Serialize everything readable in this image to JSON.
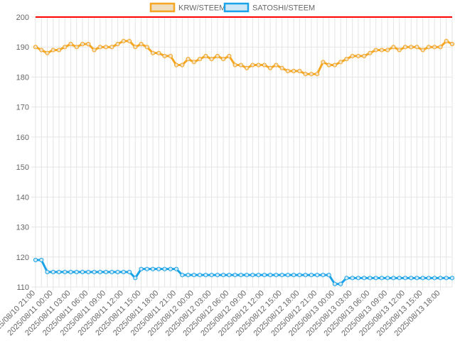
{
  "chart_data": {
    "type": "line",
    "legend_position": "top-center",
    "grid": true,
    "ylim": [
      110,
      200
    ],
    "yticks": [
      110,
      120,
      130,
      140,
      150,
      160,
      170,
      180,
      190,
      200
    ],
    "reference_line": {
      "value": 200,
      "color": "#ff0000"
    },
    "x": [
      "2025/08/10 21:00",
      "2025/08/10 22:00",
      "2025/08/10 23:00",
      "2025/08/11 00:00",
      "2025/08/11 01:00",
      "2025/08/11 02:00",
      "2025/08/11 03:00",
      "2025/08/11 04:00",
      "2025/08/11 05:00",
      "2025/08/11 06:00",
      "2025/08/11 07:00",
      "2025/08/11 08:00",
      "2025/08/11 09:00",
      "2025/08/11 10:00",
      "2025/08/11 11:00",
      "2025/08/11 12:00",
      "2025/08/11 13:00",
      "2025/08/11 14:00",
      "2025/08/11 15:00",
      "2025/08/11 16:00",
      "2025/08/11 17:00",
      "2025/08/11 18:00",
      "2025/08/11 19:00",
      "2025/08/11 20:00",
      "2025/08/11 21:00",
      "2025/08/11 22:00",
      "2025/08/11 23:00",
      "2025/08/12 00:00",
      "2025/08/12 01:00",
      "2025/08/12 02:00",
      "2025/08/12 03:00",
      "2025/08/12 04:00",
      "2025/08/12 05:00",
      "2025/08/12 06:00",
      "2025/08/12 07:00",
      "2025/08/12 08:00",
      "2025/08/12 09:00",
      "2025/08/12 10:00",
      "2025/08/12 11:00",
      "2025/08/12 12:00",
      "2025/08/12 13:00",
      "2025/08/12 14:00",
      "2025/08/12 15:00",
      "2025/08/12 16:00",
      "2025/08/12 17:00",
      "2025/08/12 18:00",
      "2025/08/12 19:00",
      "2025/08/12 20:00",
      "2025/08/12 21:00",
      "2025/08/12 22:00",
      "2025/08/12 23:00",
      "2025/08/13 00:00",
      "2025/08/13 01:00",
      "2025/08/13 02:00",
      "2025/08/13 03:00",
      "2025/08/13 04:00",
      "2025/08/13 05:00",
      "2025/08/13 06:00",
      "2025/08/13 07:00",
      "2025/08/13 08:00",
      "2025/08/13 09:00",
      "2025/08/13 10:00",
      "2025/08/13 11:00",
      "2025/08/13 12:00",
      "2025/08/13 13:00",
      "2025/08/13 14:00",
      "2025/08/13 15:00",
      "2025/08/13 16:00",
      "2025/08/13 17:00",
      "2025/08/13 18:00",
      "2025/08/13 19:00",
      "2025/08/13 20:00"
    ],
    "xtick_labels": [
      "2025/08/10 21:00",
      "2025/08/11 00:00",
      "2025/08/11 03:00",
      "2025/08/11 06:00",
      "2025/08/11 09:00",
      "2025/08/11 12:00",
      "2025/08/11 15:00",
      "2025/08/11 18:00",
      "2025/08/11 21:00",
      "2025/08/12 00:00",
      "2025/08/12 03:00",
      "2025/08/12 06:00",
      "2025/08/12 09:00",
      "2025/08/12 12:00",
      "2025/08/12 15:00",
      "2025/08/12 18:00",
      "2025/08/12 21:00",
      "2025/08/13 00:00",
      "2025/08/13 03:00",
      "2025/08/13 06:00",
      "2025/08/13 09:00",
      "2025/08/13 12:00",
      "2025/08/13 15:00",
      "2025/08/13 18:00"
    ],
    "series": [
      {
        "name": "KRW/STEEM",
        "color": "#f5a623",
        "fill": "#f0ddbd",
        "values": [
          190,
          189,
          188,
          189,
          189,
          190,
          191,
          190,
          191,
          191,
          189,
          190,
          190,
          190,
          191,
          192,
          192,
          190,
          191,
          190,
          188,
          188,
          187,
          187,
          184,
          184,
          186,
          185,
          186,
          187,
          186,
          187,
          186,
          187,
          184,
          184,
          183,
          184,
          184,
          184,
          183,
          184,
          183,
          182,
          182,
          182,
          181,
          181,
          181,
          185,
          184,
          184,
          185,
          186,
          187,
          187,
          187,
          188,
          189,
          189,
          189,
          190,
          189,
          190,
          190,
          190,
          189,
          190,
          190,
          190,
          192,
          191
        ]
      },
      {
        "name": "SATOSHI/STEEM",
        "color": "#1aa3e8",
        "fill": "#cde7f6",
        "values": [
          119,
          119,
          115,
          115,
          115,
          115,
          115,
          115,
          115,
          115,
          115,
          115,
          115,
          115,
          115,
          115,
          115,
          113,
          116,
          116,
          116,
          116,
          116,
          116,
          116,
          114,
          114,
          114,
          114,
          114,
          114,
          114,
          114,
          114,
          114,
          114,
          114,
          114,
          114,
          114,
          114,
          114,
          114,
          114,
          114,
          114,
          114,
          114,
          114,
          114,
          114,
          111,
          111,
          113,
          113,
          113,
          113,
          113,
          113,
          113,
          113,
          113,
          113,
          113,
          113,
          113,
          113,
          113,
          113,
          113,
          113,
          113
        ]
      }
    ]
  }
}
